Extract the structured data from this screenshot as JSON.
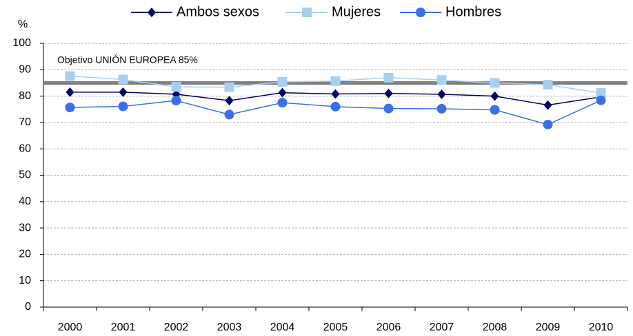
{
  "chart_data": {
    "type": "line",
    "ylabel": "%",
    "categories": [
      "2000",
      "2001",
      "2002",
      "2003",
      "2004",
      "2005",
      "2006",
      "2007",
      "2008",
      "2009",
      "2010"
    ],
    "series": [
      {
        "name": "Ambos sexos",
        "color": "#000066",
        "marker": "diamond",
        "values": [
          81.5,
          81.5,
          80.7,
          78.3,
          81.3,
          80.8,
          81.0,
          80.7,
          80.0,
          76.6,
          79.7
        ]
      },
      {
        "name": "Mujeres",
        "color": "#a6cff0",
        "marker": "square",
        "values": [
          87.6,
          86.3,
          83.5,
          83.4,
          85.4,
          85.7,
          87.0,
          86.1,
          85.0,
          84.3,
          81.2
        ]
      },
      {
        "name": "Hombres",
        "color": "#3a6fe8",
        "marker": "circle",
        "values": [
          75.7,
          76.1,
          78.3,
          73.0,
          77.5,
          76.0,
          75.3,
          75.2,
          74.8,
          69.2,
          78.4
        ]
      }
    ],
    "target": {
      "value": 85,
      "label": "Objetivo UNIÓN EUROPEA 85%",
      "color": "#808080"
    },
    "ylim": [
      0,
      100
    ],
    "yticks": [
      0,
      10,
      20,
      30,
      40,
      50,
      60,
      70,
      80,
      90,
      100
    ],
    "grid": true,
    "legend": "top"
  }
}
